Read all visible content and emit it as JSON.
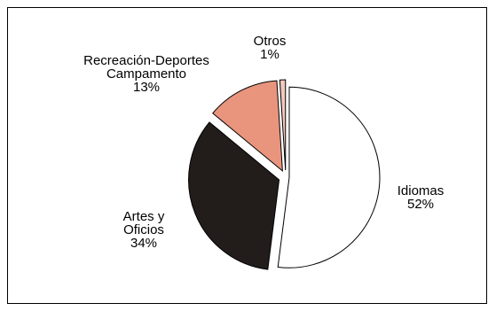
{
  "chart_data": {
    "type": "pie",
    "slices": [
      {
        "name": "Idiomas",
        "value": 52,
        "label_lines": [
          "Idiomas"
        ],
        "pct": "52%",
        "color": "#ffffff"
      },
      {
        "name": "Artes y Oficios",
        "value": 34,
        "label_lines": [
          "Artes y",
          "Oficios"
        ],
        "pct": "34%",
        "color": "#221c1a"
      },
      {
        "name": "Recreación-Deportes Campamento",
        "value": 13,
        "label_lines": [
          "Recreación-Deportes",
          "Campamento"
        ],
        "pct": "13%",
        "color": "#e9957e"
      },
      {
        "name": "Otros",
        "value": 1,
        "label_lines": [
          "Otros"
        ],
        "pct": "1%",
        "color": "#f3c9bd"
      }
    ],
    "exploded": true,
    "legend": "none"
  }
}
